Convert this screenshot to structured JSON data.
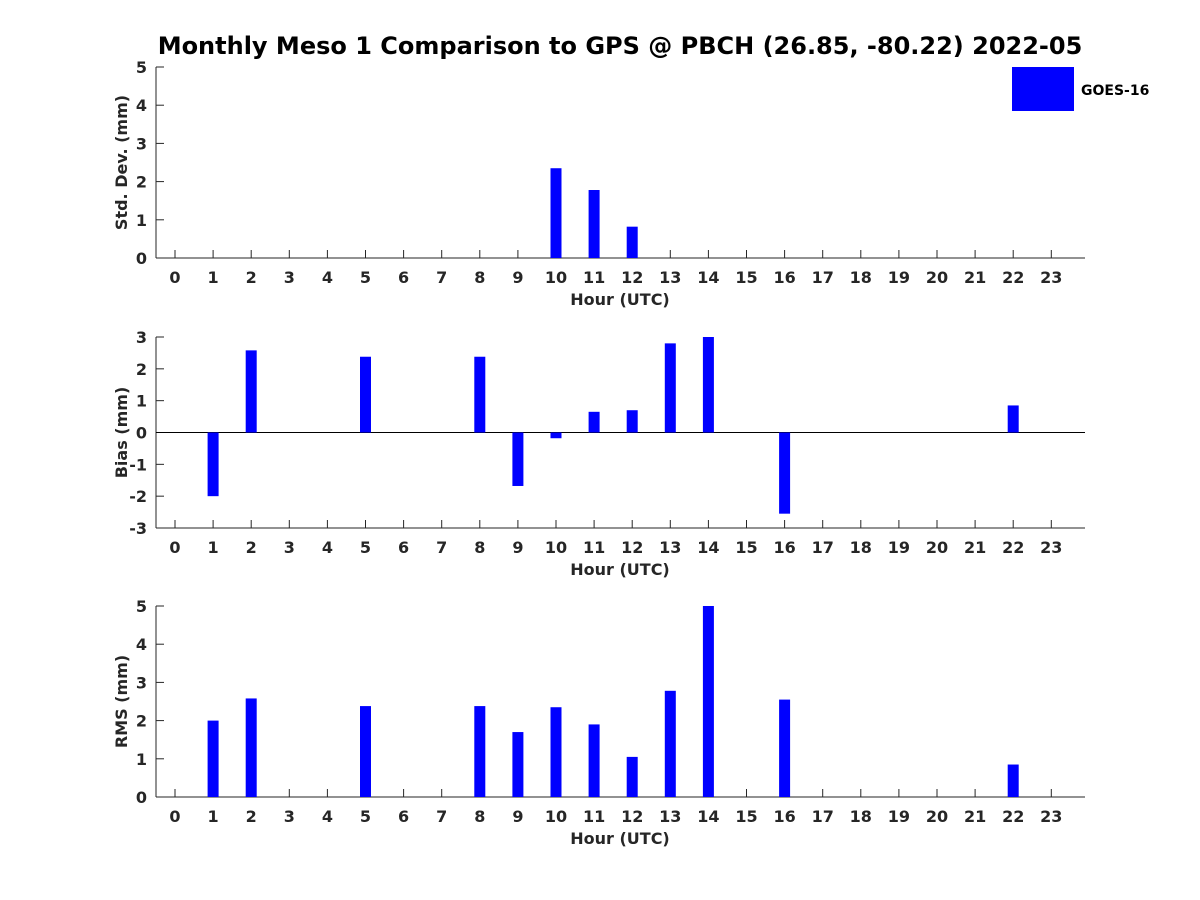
{
  "title": "Monthly Meso 1 Comparison to GPS @ PBCH (26.85, -80.22) 2022-05",
  "legend": {
    "label": "GOES-16",
    "color": "#0000ff"
  },
  "chart_data": [
    {
      "type": "bar",
      "title": "",
      "xlabel": "Hour (UTC)",
      "ylabel": "Std. Dev. (mm)",
      "categories": [
        "0",
        "1",
        "2",
        "3",
        "4",
        "5",
        "6",
        "7",
        "8",
        "9",
        "10",
        "11",
        "12",
        "13",
        "14",
        "15",
        "16",
        "17",
        "18",
        "19",
        "20",
        "21",
        "22",
        "23"
      ],
      "ylim": [
        0,
        5
      ],
      "yticks": [
        "0",
        "1",
        "2",
        "3",
        "4",
        "5"
      ],
      "series": [
        {
          "name": "GOES-16",
          "color": "#0000ff",
          "values": [
            null,
            null,
            null,
            null,
            null,
            null,
            null,
            null,
            null,
            null,
            2.35,
            1.78,
            0.82,
            null,
            null,
            null,
            null,
            null,
            null,
            null,
            null,
            null,
            null,
            null
          ]
        }
      ]
    },
    {
      "type": "bar",
      "title": "",
      "xlabel": "Hour (UTC)",
      "ylabel": "Bias (mm)",
      "categories": [
        "0",
        "1",
        "2",
        "3",
        "4",
        "5",
        "6",
        "7",
        "8",
        "9",
        "10",
        "11",
        "12",
        "13",
        "14",
        "15",
        "16",
        "17",
        "18",
        "19",
        "20",
        "21",
        "22",
        "23"
      ],
      "ylim": [
        -3,
        3
      ],
      "yticks": [
        "-3",
        "-2",
        "-1",
        "0",
        "1",
        "2",
        "3"
      ],
      "zero_line": true,
      "series": [
        {
          "name": "GOES-16",
          "color": "#0000ff",
          "values": [
            null,
            -2.0,
            2.58,
            null,
            null,
            2.38,
            null,
            null,
            2.38,
            -1.68,
            -0.18,
            0.65,
            0.7,
            2.8,
            3.0,
            null,
            -2.55,
            null,
            null,
            null,
            null,
            null,
            0.85,
            null
          ]
        }
      ]
    },
    {
      "type": "bar",
      "title": "",
      "xlabel": "Hour (UTC)",
      "ylabel": "RMS (mm)",
      "categories": [
        "0",
        "1",
        "2",
        "3",
        "4",
        "5",
        "6",
        "7",
        "8",
        "9",
        "10",
        "11",
        "12",
        "13",
        "14",
        "15",
        "16",
        "17",
        "18",
        "19",
        "20",
        "21",
        "22",
        "23"
      ],
      "ylim": [
        0,
        5
      ],
      "yticks": [
        "0",
        "1",
        "2",
        "3",
        "4",
        "5"
      ],
      "series": [
        {
          "name": "GOES-16",
          "color": "#0000ff",
          "values": [
            null,
            2.0,
            2.58,
            null,
            null,
            2.38,
            null,
            null,
            2.38,
            1.7,
            2.35,
            1.9,
            1.05,
            2.78,
            5.0,
            null,
            2.55,
            null,
            null,
            null,
            null,
            null,
            0.85,
            null
          ]
        }
      ]
    }
  ]
}
